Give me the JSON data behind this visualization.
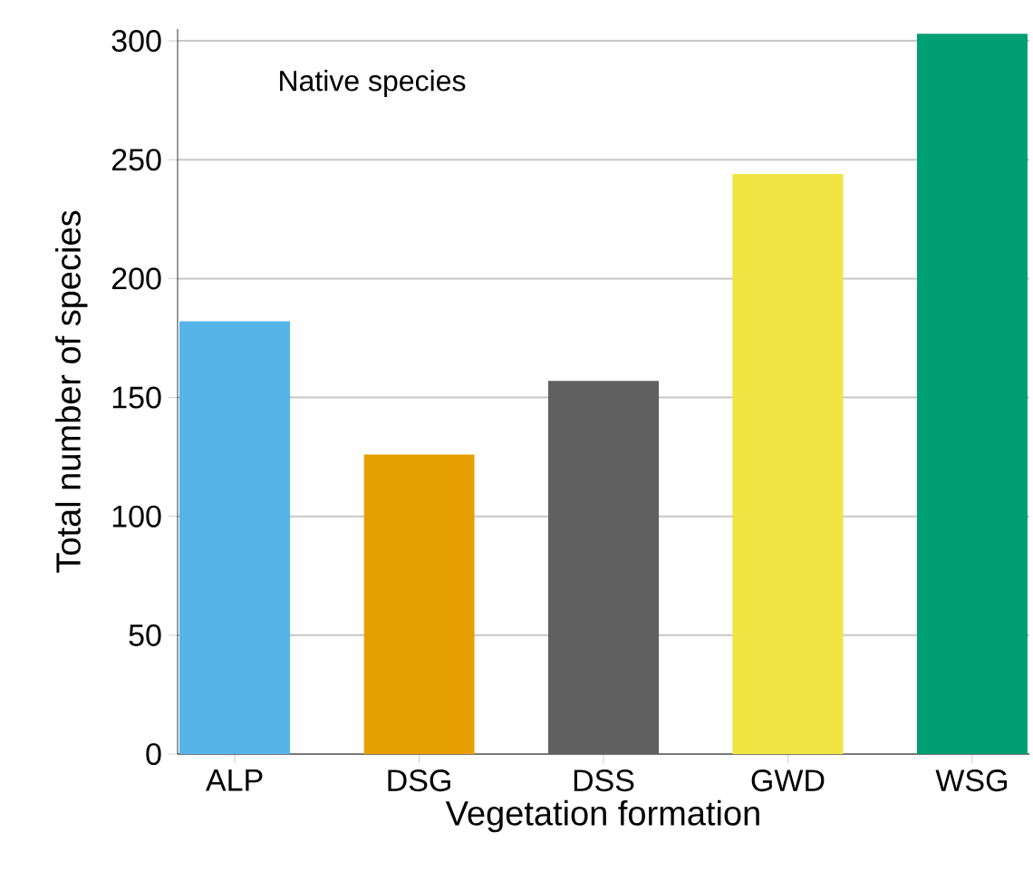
{
  "chart_data": {
    "type": "bar",
    "title": "Native species",
    "xlabel": "Vegetation formation",
    "ylabel": "Total number of species",
    "categories": [
      "ALP",
      "DSG",
      "DSS",
      "GWD",
      "WSG"
    ],
    "values": [
      182,
      126,
      157,
      244,
      303
    ],
    "colors": [
      "#56b4e9",
      "#e69f00",
      "#606060",
      "#f0e442",
      "#009e73"
    ],
    "ylim": [
      0,
      305
    ],
    "yticks": [
      0,
      50,
      100,
      150,
      200,
      250,
      300
    ],
    "grid": "y"
  }
}
